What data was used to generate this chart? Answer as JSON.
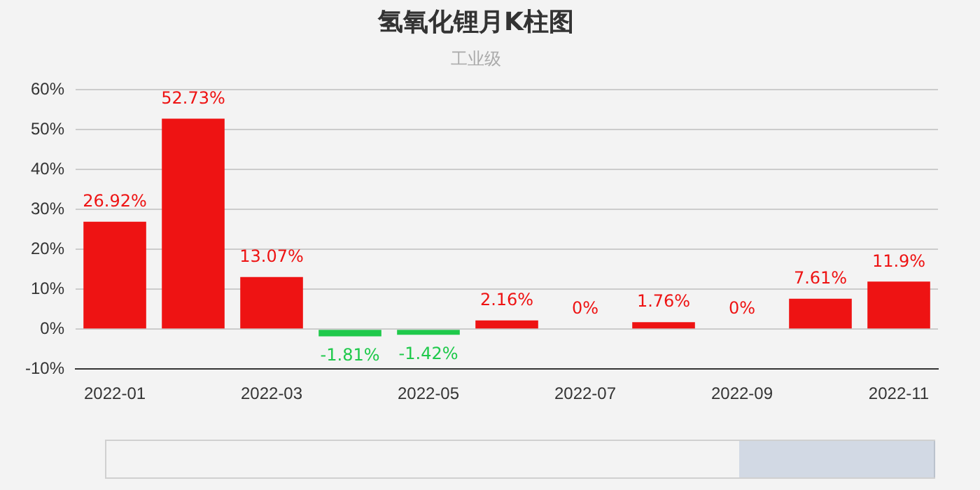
{
  "chart_data": {
    "type": "bar",
    "title": "氢氧化锂月K柱图",
    "subtitle": "工业级",
    "categories": [
      "2022-01",
      null,
      "2022-03",
      null,
      "2022-05",
      null,
      "2022-07",
      null,
      "2022-09",
      null,
      "2022-11"
    ],
    "values": [
      26.92,
      52.73,
      13.07,
      -1.81,
      -1.42,
      2.16,
      0,
      1.76,
      0,
      7.61,
      11.9
    ],
    "colors": [
      "#ee1313",
      "#ee1313",
      "#ee1313",
      "#1fc94b",
      "#1fc94b",
      "#ee1313",
      "#ee1313",
      "#ee1313",
      "#ee1313",
      "#ee1313",
      "#ee1313"
    ],
    "value_labels": [
      "26.92%",
      "52.73%",
      "13.07%",
      "-1.81%",
      "-1.42%",
      "2.16%",
      "0%",
      "1.76%",
      "0%",
      "7.61%",
      "11.9%"
    ],
    "ylim": [
      -10,
      60
    ],
    "yticks": [
      {
        "value": -10,
        "label": "-10%"
      },
      {
        "value": 0,
        "label": "0%"
      },
      {
        "value": 10,
        "label": "10%"
      },
      {
        "value": 20,
        "label": "20%"
      },
      {
        "value": 30,
        "label": "30%"
      },
      {
        "value": 40,
        "label": "40%"
      },
      {
        "value": 50,
        "label": "50%"
      },
      {
        "value": 60,
        "label": "60%"
      }
    ],
    "grid": "y",
    "legend": false
  }
}
